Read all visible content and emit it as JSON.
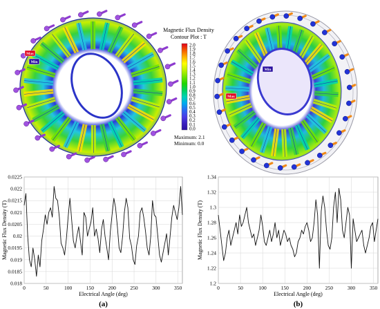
{
  "figure": {
    "colorbar": {
      "title_line1": "Magnetic Flux Density",
      "title_line2": "Contour Plot : T",
      "ticks": [
        "2.0",
        "1.9",
        "1.8",
        "1.7",
        "1.6",
        "1.5",
        "1.4",
        "1.3",
        "1.2",
        "1.1",
        "1.0",
        "0.9",
        "0.8",
        "0.7",
        "0.6",
        "0.5",
        "0.4",
        "0.3",
        "0.2",
        "0.1",
        "0.0"
      ],
      "maximum_text": "Maximum: 2.1",
      "minimum_text": "Minimum: 0.0",
      "stops": [
        "#e0001c",
        "#f55a00",
        "#ffb000",
        "#ffff00",
        "#bff200",
        "#6fe400",
        "#1ed600",
        "#00d25a",
        "#00d2b4",
        "#00aaf0",
        "#2a6af2",
        "#4a3ce8",
        "#3a20c0",
        "#2a10a0"
      ]
    },
    "model_a_markers": {
      "max": "Max",
      "min": "Min"
    },
    "model_b_markers": {
      "max": "Max",
      "min": "Min"
    },
    "panel_labels": {
      "a": "(a)",
      "b": "(b)"
    }
  },
  "chart_data": [
    {
      "type": "line",
      "xlabel": "Electrical Angle (deg)",
      "ylabel": "Magnetic Flux Density (T)",
      "xlim": [
        0,
        360
      ],
      "ylim": [
        0.018,
        0.0225
      ],
      "xticks": [
        0,
        50,
        100,
        150,
        200,
        250,
        300,
        350
      ],
      "yticks": [
        0.018,
        0.0185,
        0.019,
        0.0195,
        0.02,
        0.0205,
        0.021,
        0.0215,
        0.022,
        0.0225
      ],
      "ytick_labels": [
        "0.018",
        "0.0185",
        "0.019",
        "0.0195",
        "0.02",
        "0.0205",
        "0.021",
        "0.0215",
        "0.022",
        "0.0225"
      ],
      "grid": true,
      "series": [
        {
          "color": "#111111",
          "x": [
            0,
            4,
            8,
            12,
            16,
            20,
            24,
            28,
            32,
            36,
            40,
            44,
            48,
            52,
            56,
            60,
            64,
            68,
            72,
            76,
            80,
            84,
            88,
            92,
            96,
            100,
            104,
            108,
            112,
            116,
            120,
            124,
            128,
            132,
            136,
            140,
            144,
            148,
            152,
            156,
            160,
            164,
            168,
            172,
            176,
            180,
            184,
            188,
            192,
            196,
            200,
            204,
            208,
            212,
            216,
            220,
            224,
            228,
            232,
            236,
            240,
            244,
            248,
            252,
            256,
            260,
            264,
            268,
            272,
            276,
            280,
            284,
            288,
            292,
            296,
            300,
            304,
            308,
            312,
            316,
            320,
            324,
            328,
            332,
            336,
            340,
            344,
            348,
            352,
            356,
            360
          ],
          "y": [
            0.0213,
            0.0218,
            0.02,
            0.019,
            0.0187,
            0.0195,
            0.019,
            0.0183,
            0.0192,
            0.0187,
            0.0198,
            0.0203,
            0.0209,
            0.0205,
            0.021,
            0.0212,
            0.0208,
            0.0221,
            0.0216,
            0.0215,
            0.0208,
            0.0197,
            0.0195,
            0.0192,
            0.0199,
            0.0208,
            0.0216,
            0.0207,
            0.0198,
            0.0195,
            0.02,
            0.0204,
            0.0198,
            0.0192,
            0.021,
            0.0208,
            0.02,
            0.0203,
            0.0206,
            0.0212,
            0.02,
            0.0203,
            0.0199,
            0.0193,
            0.0203,
            0.0207,
            0.02,
            0.0195,
            0.019,
            0.0202,
            0.0209,
            0.0216,
            0.0212,
            0.0204,
            0.0195,
            0.0193,
            0.02,
            0.021,
            0.0216,
            0.0212,
            0.0199,
            0.0196,
            0.019,
            0.0188,
            0.0196,
            0.02,
            0.021,
            0.0212,
            0.0208,
            0.0202,
            0.0195,
            0.0192,
            0.02,
            0.0215,
            0.0209,
            0.0208,
            0.02,
            0.0192,
            0.0189,
            0.0193,
            0.0197,
            0.0201,
            0.0192,
            0.02,
            0.0208,
            0.0213,
            0.021,
            0.0207,
            0.0212,
            0.0221,
            0.0209
          ]
        }
      ]
    },
    {
      "type": "line",
      "xlabel": "Electrical Angle (deg)",
      "ylabel": "Magnetic Flux Density (T)",
      "xlim": [
        0,
        360
      ],
      "ylim": [
        1.2,
        1.34
      ],
      "xticks": [
        0,
        50,
        100,
        150,
        200,
        250,
        300,
        350
      ],
      "yticks": [
        1.2,
        1.22,
        1.24,
        1.26,
        1.28,
        1.3,
        1.32,
        1.34
      ],
      "ytick_labels": [
        "1.2",
        "1.22",
        "1.24",
        "1.26",
        "1.28",
        "1.3",
        "1.32",
        "1.34"
      ],
      "grid": true,
      "series": [
        {
          "color": "#111111",
          "x": [
            0,
            4,
            8,
            12,
            16,
            20,
            24,
            28,
            32,
            36,
            40,
            44,
            48,
            52,
            56,
            60,
            64,
            68,
            72,
            76,
            80,
            84,
            88,
            92,
            96,
            100,
            104,
            108,
            112,
            116,
            120,
            124,
            128,
            132,
            136,
            140,
            144,
            148,
            152,
            156,
            160,
            164,
            168,
            172,
            176,
            180,
            184,
            188,
            192,
            196,
            200,
            204,
            208,
            212,
            216,
            220,
            224,
            228,
            232,
            236,
            240,
            244,
            248,
            252,
            256,
            260,
            264,
            268,
            272,
            276,
            280,
            284,
            288,
            292,
            296,
            300,
            304,
            308,
            312,
            316,
            320,
            324,
            328,
            332,
            336,
            340,
            344,
            348,
            352,
            356,
            360
          ],
          "y": [
            1.29,
            1.27,
            1.25,
            1.23,
            1.24,
            1.26,
            1.27,
            1.25,
            1.26,
            1.27,
            1.28,
            1.265,
            1.29,
            1.275,
            1.28,
            1.29,
            1.3,
            1.28,
            1.27,
            1.26,
            1.265,
            1.25,
            1.26,
            1.27,
            1.29,
            1.275,
            1.255,
            1.25,
            1.26,
            1.27,
            1.255,
            1.265,
            1.28,
            1.26,
            1.27,
            1.25,
            1.26,
            1.27,
            1.265,
            1.255,
            1.26,
            1.25,
            1.245,
            1.235,
            1.24,
            1.255,
            1.26,
            1.27,
            1.265,
            1.275,
            1.28,
            1.27,
            1.255,
            1.26,
            1.28,
            1.31,
            1.29,
            1.22,
            1.295,
            1.315,
            1.3,
            1.27,
            1.25,
            1.245,
            1.26,
            1.3,
            1.32,
            1.28,
            1.325,
            1.31,
            1.27,
            1.26,
            1.28,
            1.3,
            1.29,
            1.22,
            1.285,
            1.27,
            1.255,
            1.26,
            1.265,
            1.27,
            1.25,
            1.24,
            1.25,
            1.26,
            1.275,
            1.28,
            1.255,
            1.27,
            1.285
          ]
        }
      ]
    }
  ]
}
